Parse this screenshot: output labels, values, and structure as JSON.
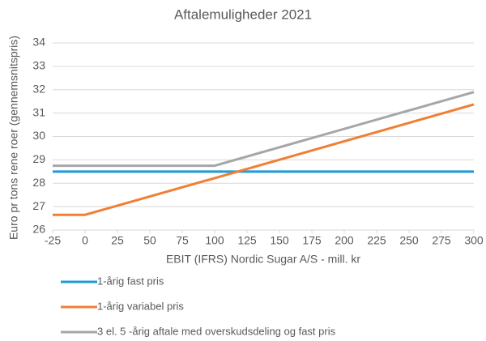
{
  "chart_data": {
    "type": "line",
    "title": "Aftalemuligheder 2021",
    "xlabel": "EBIT (IFRS) Nordic Sugar A/S - mill. kr",
    "ylabel": "Euro pr tons rene roer (gennemsnitspris)",
    "x": [
      -25,
      0,
      100,
      300
    ],
    "series": [
      {
        "name": "1-årig fast pris",
        "color": "#1f9bd7",
        "values": [
          28.5,
          28.5,
          28.5,
          28.5
        ]
      },
      {
        "name": "1-årig variabel pris",
        "color": "#f07f34",
        "values": [
          26.65,
          26.65,
          28.22,
          31.37
        ]
      },
      {
        "name": "3 el. 5 -årig aftale med overskudsdeling og fast pris",
        "color": "#a6a6a6",
        "values": [
          28.75,
          28.75,
          28.75,
          31.9
        ]
      }
    ],
    "xlim": [
      -25,
      300
    ],
    "xticks": [
      -25,
      0,
      25,
      50,
      75,
      100,
      125,
      150,
      175,
      200,
      225,
      250,
      275,
      300
    ],
    "ylim": [
      26,
      34
    ],
    "yticks": [
      26,
      27,
      28,
      29,
      30,
      31,
      32,
      33,
      34
    ],
    "grid": true,
    "legend": "bottom"
  }
}
